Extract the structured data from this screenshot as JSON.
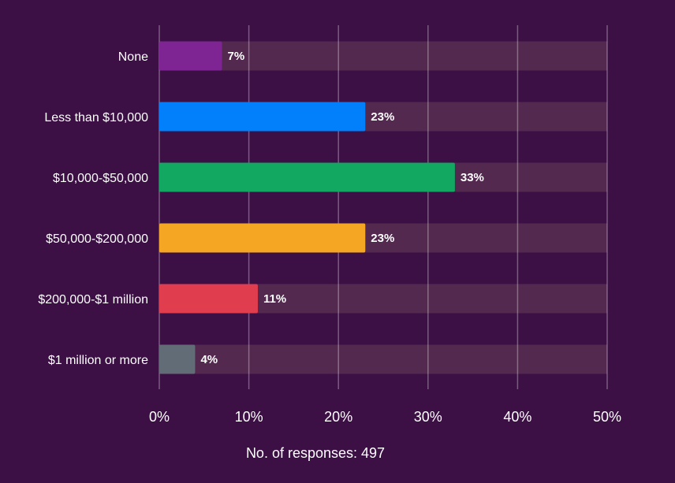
{
  "chart_data": {
    "type": "bar",
    "orientation": "horizontal",
    "categories": [
      "None",
      "Less than $10,000",
      "$10,000-$50,000",
      "$50,000-$200,000",
      "$200,000-$1 million",
      "$1 million or more"
    ],
    "values": [
      7,
      23,
      33,
      23,
      11,
      4
    ],
    "value_labels": [
      "7%",
      "23%",
      "33%",
      "23%",
      "11%",
      "4%"
    ],
    "bar_colors": [
      "#7e2593",
      "#0280fb",
      "#12a862",
      "#f5a623",
      "#e03e4e",
      "#626c76"
    ],
    "track_color": "#53294f",
    "xlim": [
      0,
      50
    ],
    "xticks": [
      0,
      10,
      20,
      30,
      40,
      50
    ],
    "xtick_labels": [
      "0%",
      "10%",
      "20%",
      "30%",
      "40%",
      "50%"
    ],
    "grid": true,
    "title": "",
    "xlabel": "",
    "ylabel": "",
    "footer": "No. of responses: 497"
  }
}
